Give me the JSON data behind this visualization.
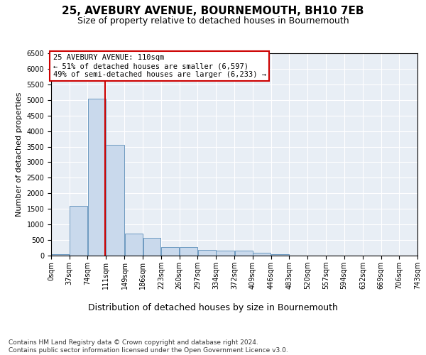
{
  "title": "25, AVEBURY AVENUE, BOURNEMOUTH, BH10 7EB",
  "subtitle": "Size of property relative to detached houses in Bournemouth",
  "xlabel": "Distribution of detached houses by size in Bournemouth",
  "ylabel": "Number of detached properties",
  "footer_line1": "Contains HM Land Registry data © Crown copyright and database right 2024.",
  "footer_line2": "Contains public sector information licensed under the Open Government Licence v3.0.",
  "property_label": "25 AVEBURY AVENUE: 110sqm",
  "annotation_line1": "← 51% of detached houses are smaller (6,597)",
  "annotation_line2": "49% of semi-detached houses are larger (6,233) →",
  "property_size_sqm": 110,
  "bin_edges": [
    0,
    37,
    74,
    111,
    149,
    186,
    223,
    260,
    297,
    334,
    372,
    409,
    446,
    483,
    520,
    557,
    594,
    632,
    669,
    706,
    743
  ],
  "bar_heights": [
    50,
    1600,
    5050,
    3550,
    700,
    580,
    280,
    270,
    180,
    165,
    155,
    100,
    50,
    0,
    0,
    0,
    0,
    0,
    0,
    0
  ],
  "bar_color": "#c9d9ec",
  "bar_edge_color": "#5b8db8",
  "vline_color": "#cc0000",
  "annotation_box_edge_color": "#cc0000",
  "annotation_box_face_color": "white",
  "background_color": "#e8eef5",
  "ylim": [
    0,
    6500
  ],
  "yticks": [
    0,
    500,
    1000,
    1500,
    2000,
    2500,
    3000,
    3500,
    4000,
    4500,
    5000,
    5500,
    6000,
    6500
  ],
  "title_fontsize": 11,
  "subtitle_fontsize": 9,
  "xlabel_fontsize": 9,
  "ylabel_fontsize": 8,
  "tick_fontsize": 7,
  "annotation_fontsize": 7.5,
  "footer_fontsize": 6.5
}
